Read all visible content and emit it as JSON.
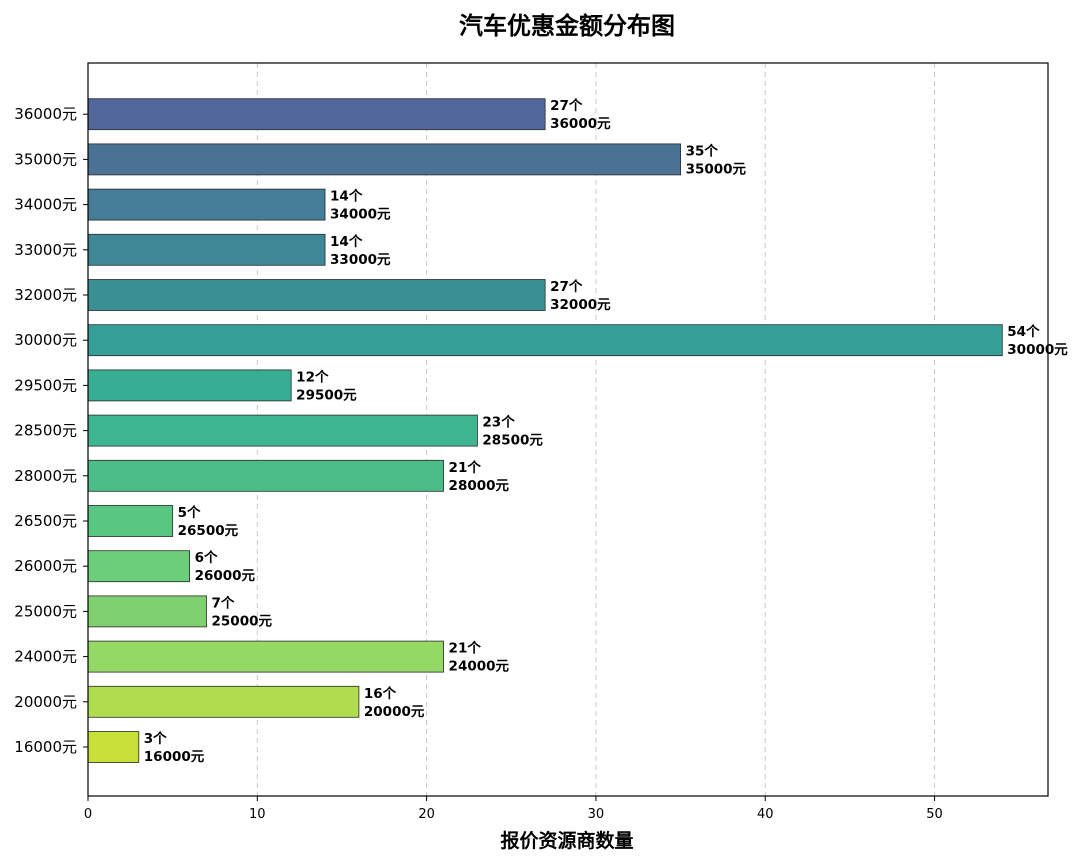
{
  "chart_data": {
    "type": "bar",
    "orientation": "horizontal",
    "title": "汽车优惠金额分布图",
    "xlabel": "报价资源商数量",
    "ylabel": "",
    "xlim": [
      0,
      56.7
    ],
    "xticks": [
      0,
      10,
      20,
      30,
      40,
      50
    ],
    "grid": "x, dashed",
    "categories": [
      "16000元",
      "20000元",
      "24000元",
      "25000元",
      "26000元",
      "26500元",
      "28000元",
      "28500元",
      "29500元",
      "30000元",
      "32000元",
      "33000元",
      "34000元",
      "35000元",
      "36000元"
    ],
    "values": [
      3,
      16,
      21,
      7,
      6,
      5,
      21,
      23,
      12,
      54,
      27,
      14,
      14,
      35,
      27
    ],
    "data_labels": [
      [
        "3个",
        "16000元"
      ],
      [
        "16个",
        "20000元"
      ],
      [
        "21个",
        "24000元"
      ],
      [
        "7个",
        "25000元"
      ],
      [
        "6个",
        "26000元"
      ],
      [
        "5个",
        "26500元"
      ],
      [
        "21个",
        "28000元"
      ],
      [
        "23个",
        "28500元"
      ],
      [
        "12个",
        "29500元"
      ],
      [
        "54个",
        "30000元"
      ],
      [
        "27个",
        "32000元"
      ],
      [
        "14个",
        "33000元"
      ],
      [
        "14个",
        "34000元"
      ],
      [
        "35个",
        "35000元"
      ],
      [
        "27个",
        "36000元"
      ]
    ],
    "colors": [
      "#c7e03a",
      "#b0dd50",
      "#94d865",
      "#7fd06f",
      "#6ccd7a",
      "#58c782",
      "#4cbd88",
      "#3eb791",
      "#37ad93",
      "#359e97",
      "#3a9195",
      "#3e8797",
      "#457c97",
      "#4a7295",
      "#52679c"
    ]
  }
}
